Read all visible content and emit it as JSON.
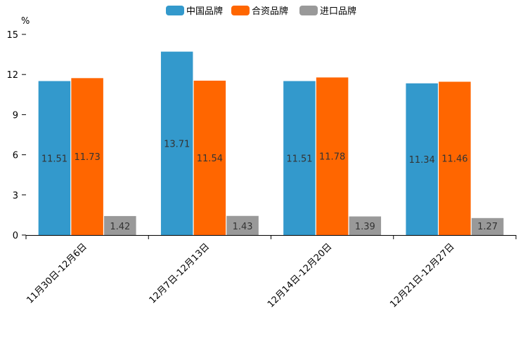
{
  "chart_data": {
    "type": "bar",
    "unit_label": "%",
    "categories": [
      "11月30日-12月6日",
      "12月7日-12月13日",
      "12月14日-12月20日",
      "12月21日-12月27日"
    ],
    "series": [
      {
        "name": "中国品牌",
        "color": "#3399cc",
        "values": [
          11.51,
          13.71,
          11.51,
          11.34
        ],
        "labels": [
          "11.51",
          "13.71",
          "11.51",
          "11.34"
        ]
      },
      {
        "name": "合资品牌",
        "color": "#ff6600",
        "values": [
          11.73,
          11.54,
          11.78,
          11.46
        ],
        "labels": [
          "11.73",
          "11.54",
          "11.78",
          "11.46"
        ]
      },
      {
        "name": "进口品牌",
        "color": "#999999",
        "values": [
          1.42,
          1.43,
          1.39,
          1.27
        ],
        "labels": [
          "1.42",
          "1.43",
          "1.39",
          "1.27"
        ]
      }
    ],
    "yticks": [
      0,
      3,
      6,
      9,
      12,
      15
    ],
    "ytick_labels": [
      "0",
      "3",
      "6",
      "9",
      "12",
      "15"
    ],
    "ylim": [
      0,
      15
    ],
    "legend_position": "top-center",
    "grid": false
  }
}
